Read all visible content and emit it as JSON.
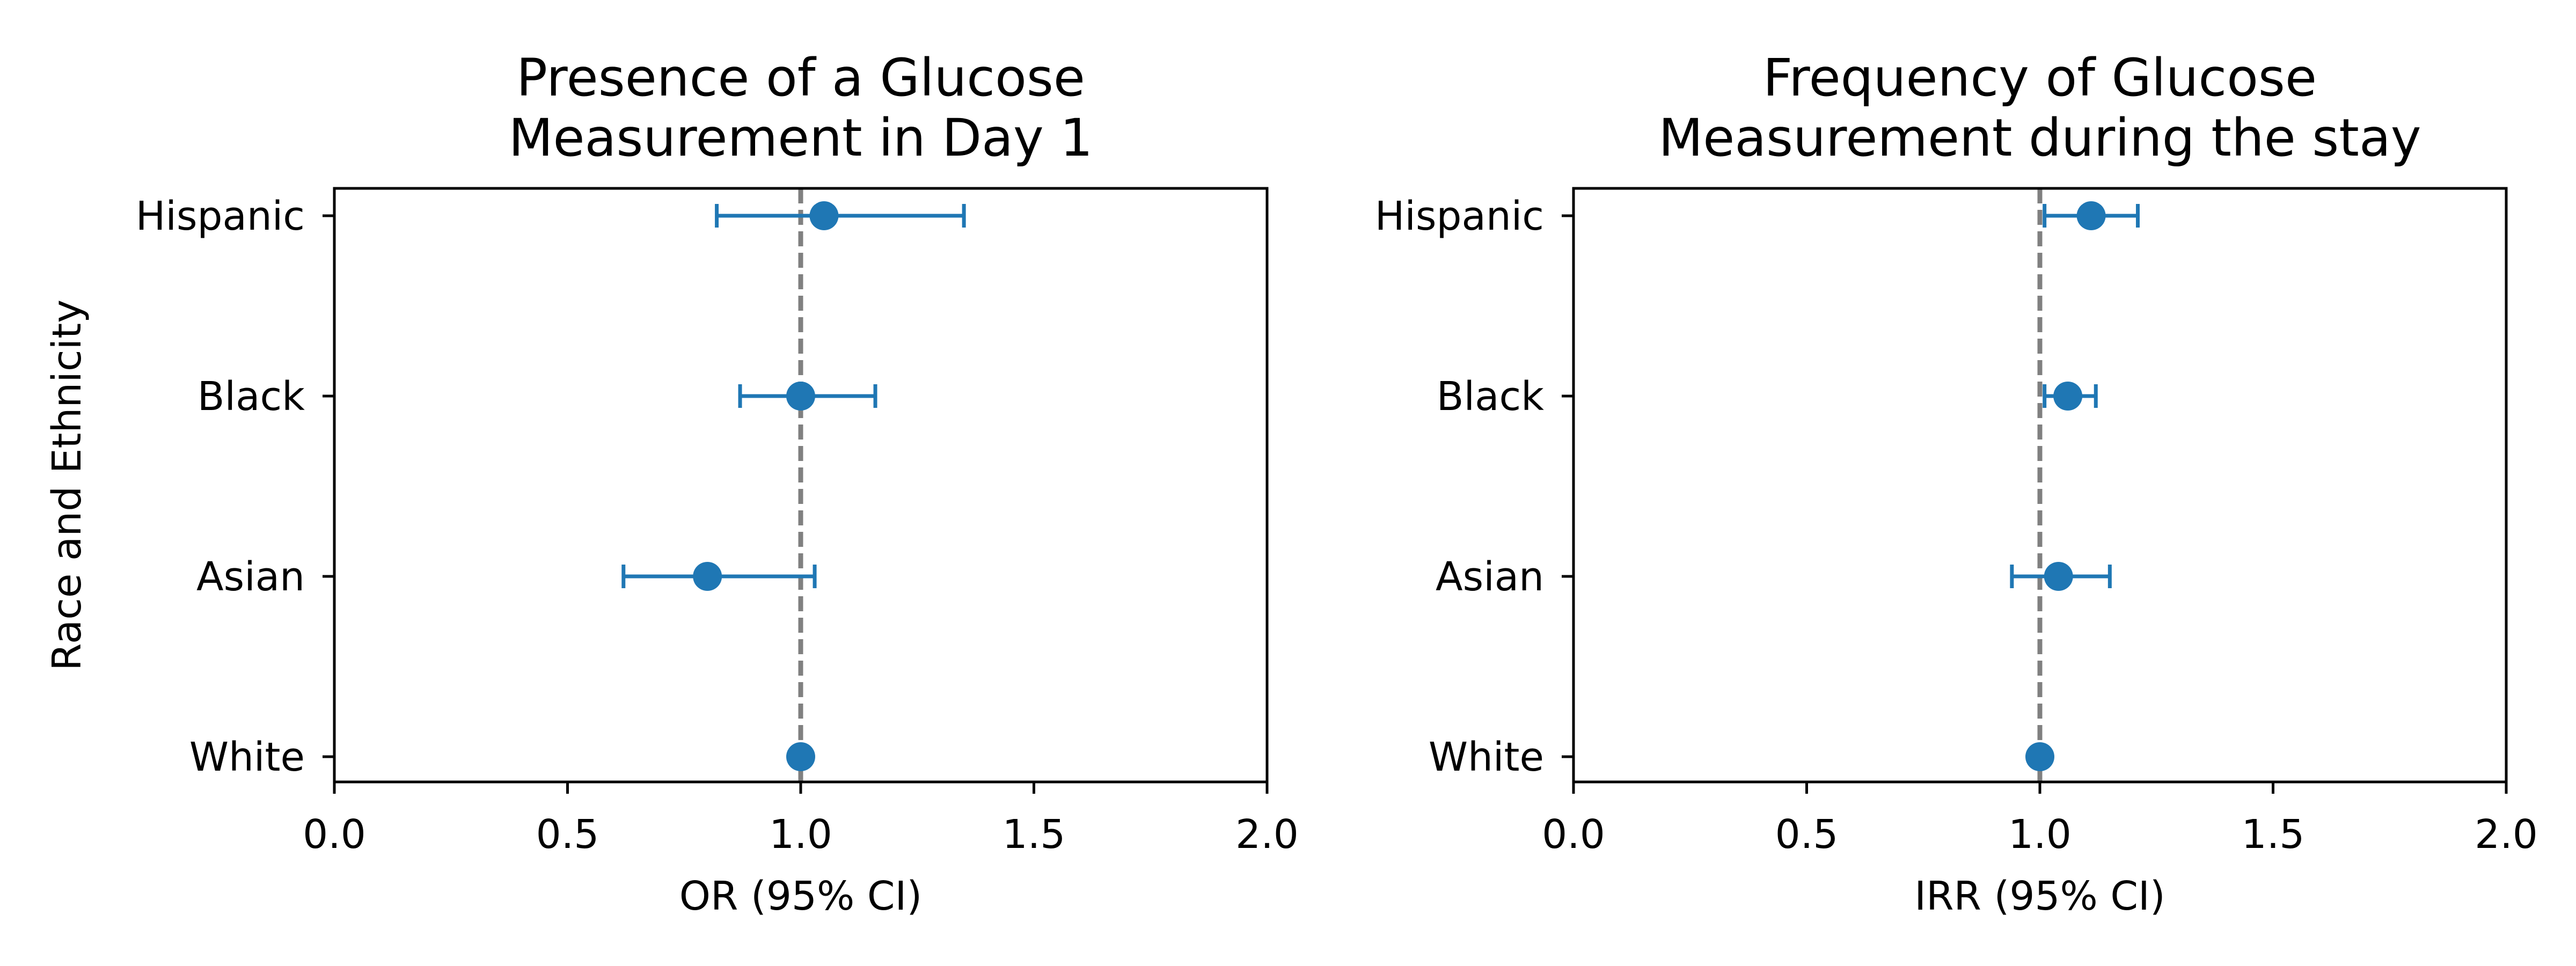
{
  "chart_data": [
    {
      "type": "scatter",
      "title": "Presence of a Glucose\nMeasurement in Day 1",
      "xlabel": "OR (95% CI)",
      "ylabel": "Race and Ethnicity",
      "xlim": [
        0.0,
        2.0
      ],
      "xticks": [
        0.0,
        0.5,
        1.0,
        1.5,
        2.0
      ],
      "xtick_labels": [
        "0.0",
        "0.5",
        "1.0",
        "1.5",
        "2.0"
      ],
      "categories": [
        "Hispanic",
        "Black",
        "Asian",
        "White"
      ],
      "estimates": [
        1.05,
        1.0,
        0.8,
        1.0
      ],
      "ci_lower": [
        0.82,
        0.87,
        0.62,
        1.0
      ],
      "ci_upper": [
        1.35,
        1.16,
        1.03,
        1.0
      ],
      "reference_line": 1.0,
      "grid": false,
      "legend": "none"
    },
    {
      "type": "scatter",
      "title": "Frequency of Glucose\nMeasurement during the stay",
      "xlabel": "IRR (95% CI)",
      "ylabel": "",
      "xlim": [
        0.0,
        2.0
      ],
      "xticks": [
        0.0,
        0.5,
        1.0,
        1.5,
        2.0
      ],
      "xtick_labels": [
        "0.0",
        "0.5",
        "1.0",
        "1.5",
        "2.0"
      ],
      "categories": [
        "Hispanic",
        "Black",
        "Asian",
        "White"
      ],
      "estimates": [
        1.11,
        1.06,
        1.04,
        1.0
      ],
      "ci_lower": [
        1.01,
        1.01,
        0.94,
        1.0
      ],
      "ci_upper": [
        1.21,
        1.12,
        1.15,
        1.0
      ],
      "reference_line": 1.0,
      "grid": false,
      "legend": "none"
    }
  ],
  "colors": {
    "marker": "#1f77b4",
    "reference_line": "#808080",
    "axes": "#000000"
  }
}
